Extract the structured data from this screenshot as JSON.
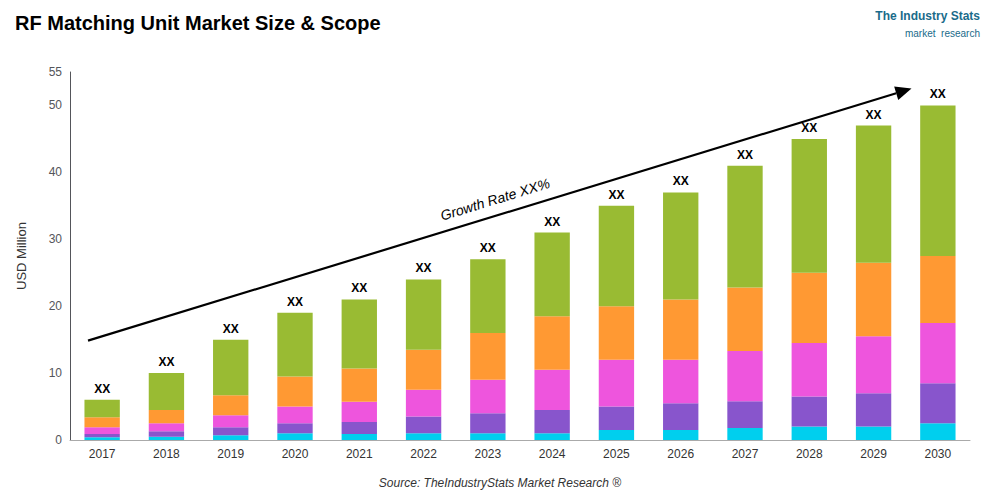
{
  "chart_data": {
    "type": "bar",
    "stacked": true,
    "title": "RF Matching Unit Market Size & Scope",
    "ylabel": "USD Million",
    "source": "Source: TheIndustryStats Market Research ®",
    "note": "Growth Rate XX%",
    "logo": [
      "The Industry Stats",
      "market  research"
    ],
    "categories": [
      2017,
      2018,
      2019,
      2020,
      2021,
      2022,
      2023,
      2024,
      2025,
      2026,
      2027,
      2028,
      2029,
      2030
    ],
    "series": [
      {
        "color": "#00CFEE",
        "values": [
          0.4,
          0.5,
          0.7,
          1.0,
          0.9,
          1.0,
          1.0,
          1.0,
          1.5,
          1.5,
          1.8,
          2.0,
          2.0,
          2.5
        ]
      },
      {
        "color": "#8855CC",
        "values": [
          0.5,
          0.8,
          1.2,
          1.5,
          1.8,
          2.5,
          3.0,
          3.5,
          3.5,
          4.0,
          4.0,
          4.5,
          5.0,
          6.0
        ]
      },
      {
        "color": "#EE55DD",
        "values": [
          1.0,
          1.2,
          1.8,
          2.5,
          3.0,
          4.0,
          5.0,
          6.0,
          7.0,
          6.5,
          7.5,
          8.0,
          8.5,
          9.0
        ]
      },
      {
        "color": "#FF9933",
        "values": [
          1.5,
          2.0,
          3.0,
          4.5,
          5.0,
          6.0,
          7.0,
          8.0,
          8.0,
          9.0,
          9.5,
          10.5,
          11.0,
          10.0
        ]
      },
      {
        "color": "#99BB33",
        "values": [
          2.6,
          5.5,
          8.3,
          9.5,
          10.3,
          10.5,
          11.0,
          12.5,
          15.0,
          16.0,
          18.2,
          20.0,
          20.5,
          22.5
        ],
        "value_labels": [
          "XX",
          "XX",
          "XX",
          "XX",
          "XX",
          "XX",
          "XX",
          "XX",
          "XX",
          "XX",
          "XX",
          "XX",
          "XX",
          "XX"
        ]
      }
    ],
    "ylim": [
      0,
      55
    ],
    "yticks": [
      0,
      10,
      20,
      30,
      40,
      50
    ],
    "grid": false
  }
}
